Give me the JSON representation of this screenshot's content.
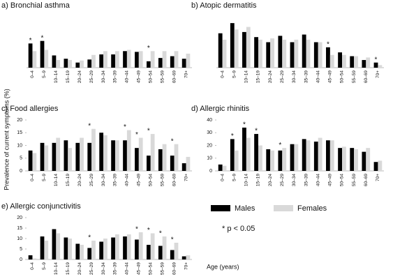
{
  "chart_data": [
    {
      "type": "bar",
      "title": "a) Bronchial asthma",
      "categories": [
        "0–4",
        "5–9",
        "10–14",
        "15–19",
        "20–24",
        "25–29",
        "30–34",
        "35–39",
        "40–44",
        "45–49",
        "50–54",
        "55–59",
        "60–69",
        "70+"
      ],
      "series": [
        {
          "name": "Males",
          "color": "#000000",
          "values": [
            9.5,
            10.5,
            4.8,
            3.5,
            2,
            3.2,
            5.2,
            5.2,
            6.5,
            6.2,
            2.5,
            3.8,
            4.5,
            3.5
          ]
        },
        {
          "name": "Females",
          "color": "#d9d9d9",
          "values": [
            6.5,
            7,
            3,
            3,
            2.8,
            5,
            6.5,
            6.5,
            7,
            6.5,
            6.5,
            6.5,
            6.5,
            5.5
          ]
        }
      ],
      "significance": [
        "*",
        "*",
        null,
        null,
        null,
        null,
        null,
        null,
        null,
        null,
        "*",
        null,
        null,
        null
      ],
      "ylim": [
        0,
        20
      ]
    },
    {
      "type": "bar",
      "title": "b) Atopic dermatitis",
      "categories": [
        "0–4",
        "5–9",
        "10–14",
        "15–19",
        "20–24",
        "25–29",
        "30–34",
        "35–39",
        "40–44",
        "45–49",
        "50–54",
        "55–59",
        "60–69",
        "70+"
      ],
      "series": [
        {
          "name": "Males",
          "color": "#000000",
          "values": [
            13.5,
            17.5,
            14,
            12,
            10,
            12.5,
            10,
            13,
            10,
            8,
            6,
            4.5,
            3,
            2
          ]
        },
        {
          "name": "Females",
          "color": "#d9d9d9",
          "values": [
            11,
            15,
            16,
            11,
            11.5,
            11,
            11,
            11,
            10,
            5,
            5,
            4.5,
            4,
            1
          ]
        }
      ],
      "significance": [
        null,
        null,
        null,
        null,
        null,
        null,
        null,
        null,
        null,
        "*",
        null,
        null,
        null,
        "*"
      ],
      "ylim": [
        0,
        20
      ]
    },
    {
      "type": "bar",
      "title": "c) Food allergies",
      "categories": [
        "0–4",
        "5–9",
        "10–14",
        "15–19",
        "20–24",
        "25–29",
        "30–34",
        "35–39",
        "40–44",
        "45–49",
        "50–54",
        "55–59",
        "60–69",
        "70+"
      ],
      "series": [
        {
          "name": "Males",
          "color": "#000000",
          "values": [
            8,
            11,
            11,
            12,
            11,
            11,
            15,
            12,
            12,
            9,
            6,
            8.5,
            6,
            3
          ]
        },
        {
          "name": "Females",
          "color": "#d9d9d9",
          "values": [
            7,
            10,
            13,
            9,
            13,
            16.5,
            14,
            12,
            16,
            13,
            14.5,
            10.5,
            10.5,
            5.5
          ]
        }
      ],
      "significance": [
        null,
        null,
        null,
        null,
        null,
        "*",
        null,
        null,
        "*",
        "*",
        "*",
        null,
        "*",
        null
      ],
      "ylim": [
        0,
        20
      ],
      "yticks": [
        0,
        5,
        10,
        15,
        20
      ]
    },
    {
      "type": "bar",
      "title": "d) Allergic rhinitis",
      "categories": [
        "0–4",
        "5–9",
        "10–14",
        "15–19",
        "20–24",
        "25–29",
        "30–34",
        "35–39",
        "40–44",
        "45–49",
        "50–54",
        "55–59",
        "60–69",
        "70+"
      ],
      "series": [
        {
          "name": "Males",
          "color": "#000000",
          "values": [
            5,
            25,
            34,
            29,
            17,
            16,
            21,
            25,
            23,
            24,
            18,
            18,
            15,
            7
          ]
        },
        {
          "name": "Females",
          "color": "#d9d9d9",
          "values": [
            4,
            16,
            26,
            20,
            16,
            18,
            21,
            24,
            26,
            24,
            19,
            17,
            18,
            8
          ]
        }
      ],
      "significance": [
        null,
        "*",
        "*",
        "*",
        null,
        "*",
        null,
        null,
        null,
        null,
        null,
        null,
        null,
        null
      ],
      "ylim": [
        0,
        40
      ],
      "yticks": [
        0,
        10,
        20,
        30,
        40
      ]
    },
    {
      "type": "bar",
      "title": "e) Allergic conjunctivitis",
      "categories": [
        "0–4",
        "5–9",
        "10–14",
        "15–19",
        "20–24",
        "25–29",
        "30–34",
        "35–39",
        "40–44",
        "45–49",
        "50–54",
        "55–59",
        "60–69",
        "70+"
      ],
      "series": [
        {
          "name": "Males",
          "color": "#000000",
          "values": [
            2,
            11,
            14.5,
            10.5,
            7.5,
            5.5,
            8.5,
            10.5,
            11,
            9.5,
            7,
            6.5,
            4.5,
            1.5
          ]
        },
        {
          "name": "Females",
          "color": "#d9d9d9",
          "values": [
            0.5,
            9,
            12.5,
            10,
            7,
            9,
            10,
            12,
            12,
            13,
            12.5,
            11,
            8,
            2
          ]
        }
      ],
      "significance": [
        null,
        null,
        null,
        null,
        null,
        "*",
        null,
        null,
        null,
        "*",
        "*",
        "*",
        "*",
        null
      ],
      "ylim": [
        0,
        20
      ],
      "yticks": [
        0,
        5,
        10,
        15,
        20
      ]
    }
  ],
  "y_label": "Prevalence of current symptoms (%)",
  "x_label": "Age (years)",
  "note": "* p < 0.05"
}
